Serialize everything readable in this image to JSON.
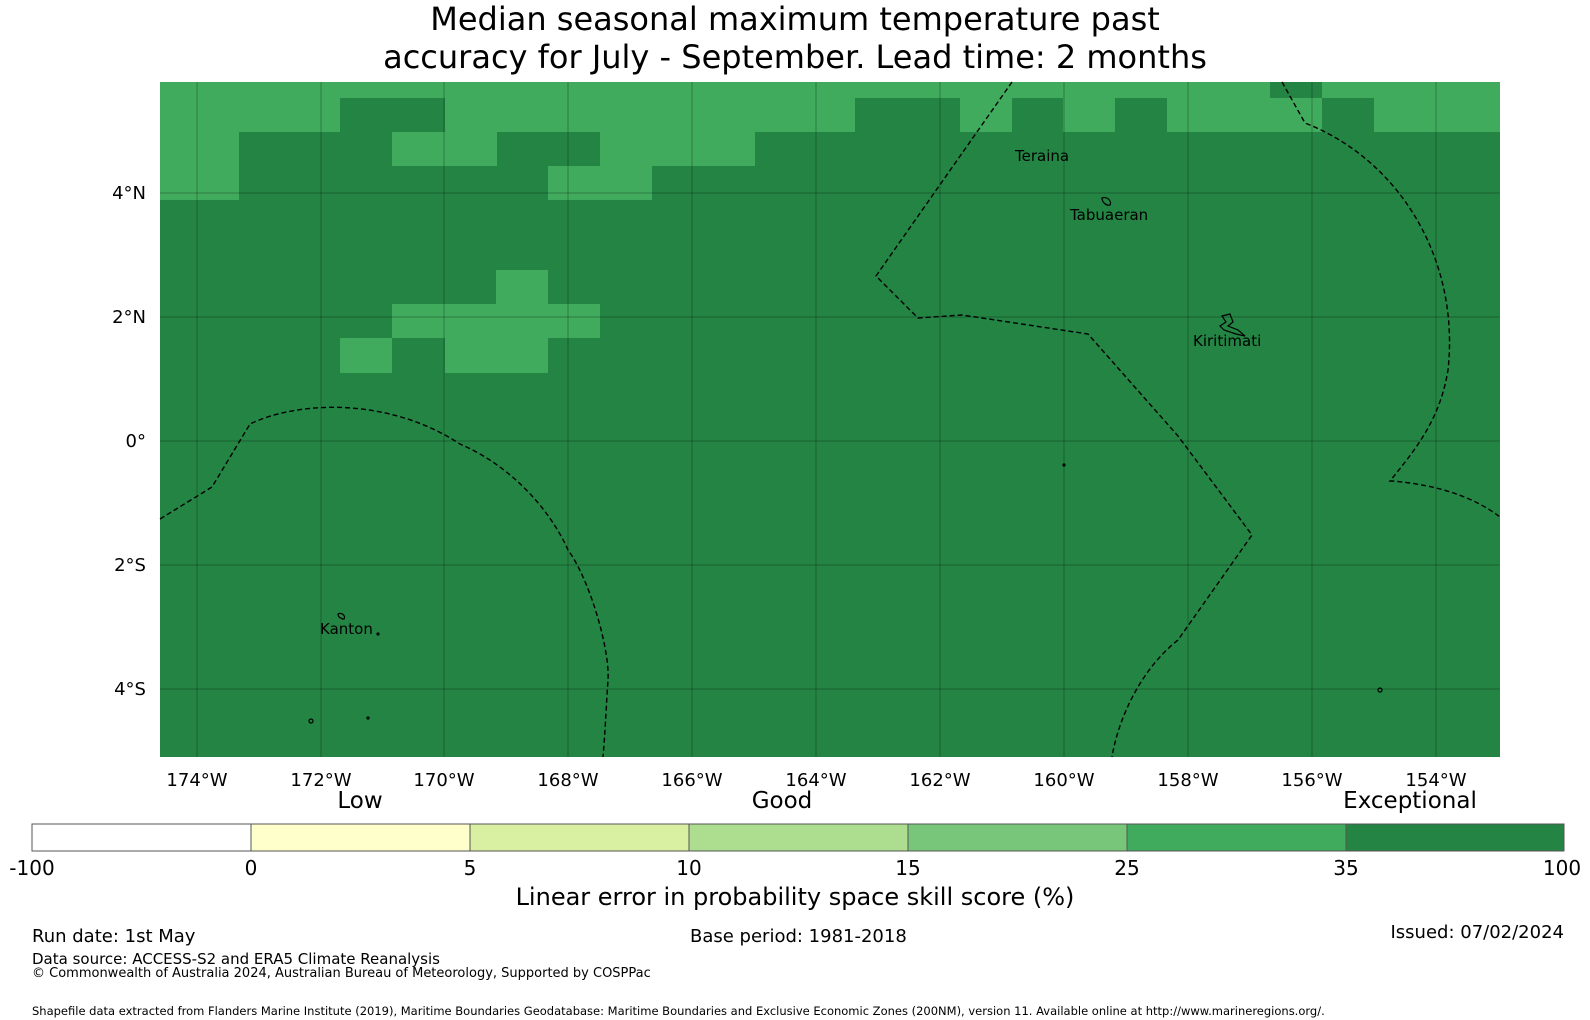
{
  "title": {
    "line1": "Median seasonal maximum temperature past",
    "line2": "accuracy for July - September. Lead time: 2 months"
  },
  "map": {
    "lon_labels": [
      "174°W",
      "172°W",
      "170°W",
      "168°W",
      "166°W",
      "164°W",
      "162°W",
      "160°W",
      "158°W",
      "156°W",
      "154°W"
    ],
    "lat_labels": [
      "4°N",
      "2°N",
      "0°",
      "2°S",
      "4°S"
    ],
    "places": [
      "Teraina",
      "Tabuaeran",
      "Kiritimati",
      "Kanton"
    ],
    "background_category": "Exceptional",
    "colors": {
      "exceptional": "#238443",
      "high": "#41ab5d",
      "mid": "#78c679"
    }
  },
  "colorbar": {
    "category_labels": [
      "Low",
      "Good",
      "Exceptional"
    ],
    "ticks": [
      "-100",
      "0",
      "5",
      "10",
      "15",
      "25",
      "35",
      "100"
    ],
    "colors": [
      "#ffffff",
      "#ffffcc",
      "#d9f0a3",
      "#addd8e",
      "#78c679",
      "#41ab5d",
      "#238443"
    ],
    "title": "Linear error in probability space skill score (%)"
  },
  "footer": {
    "run_date": "Run date: 1st May",
    "base_period": "Base period: 1981-2018",
    "issued": "Issued: 07/02/2024",
    "data_source": "Data source: ACCESS-S2 and ERA5 Climate Reanalysis",
    "copyright": "© Commonwealth of Australia 2024, Australian Bureau of Meteorology, Supported by COSPPac",
    "shapefile": "Shapefile data extracted from Flanders Marine Institute (2019), Maritime Boundaries Geodatabase: Maritime Boundaries and Exclusive Economic Zones (200NM), version 11. Available online at http://www.marineregions.org/."
  }
}
